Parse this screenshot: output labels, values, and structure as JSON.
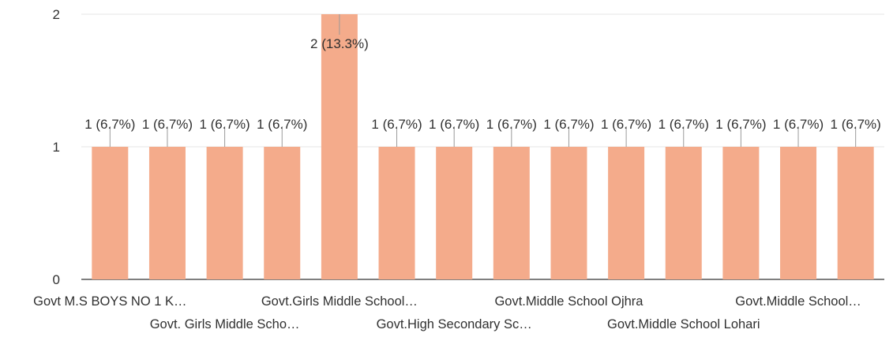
{
  "chart_data": {
    "type": "bar",
    "title": "",
    "xlabel": "",
    "ylabel": "",
    "ylim": [
      0,
      2
    ],
    "yticks": [
      "0",
      "1",
      "2"
    ],
    "grid": true,
    "legend": "none",
    "bar_color": "#f4ab8b",
    "grid_color": "#e6e6e6",
    "axis_color": "#333333",
    "values": [
      1,
      1,
      1,
      1,
      2,
      1,
      1,
      1,
      1,
      1,
      1,
      1,
      1,
      1
    ],
    "data_labels": [
      "1 (6.7%)",
      "1 (6.7%)",
      "1 (6.7%)",
      "1 (6.7%)",
      "2 (13.3%)",
      "1 (6.7%)",
      "1 (6.7%)",
      "1 (6.7%)",
      "1 (6.7%)",
      "1 (6.7%)",
      "1 (6.7%)",
      "1 (6.7%)",
      "1 (6.7%)",
      "1 (6.7%)"
    ],
    "category_labels": [
      {
        "index": 0,
        "row": 0,
        "text": "Govt M.S BOYS NO 1 K…"
      },
      {
        "index": 2,
        "row": 1,
        "text": "Govt. Girls Middle Scho…"
      },
      {
        "index": 4,
        "row": 0,
        "text": "Govt.Girls Middle School…"
      },
      {
        "index": 6,
        "row": 1,
        "text": "Govt.High Secondary Sc…"
      },
      {
        "index": 8,
        "row": 0,
        "text": "Govt.Middle School Ojhra"
      },
      {
        "index": 10,
        "row": 1,
        "text": "Govt.Middle School Lohari"
      },
      {
        "index": 12,
        "row": 0,
        "text": "Govt.Middle School…"
      }
    ]
  }
}
